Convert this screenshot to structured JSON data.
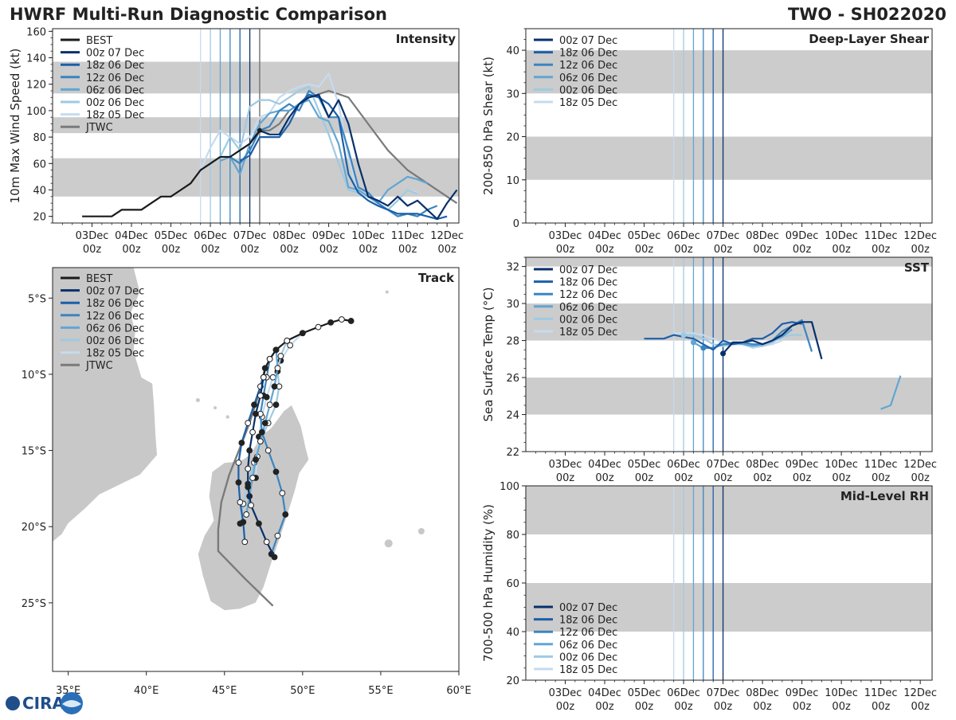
{
  "header": {
    "title": "HWRF Multi-Run Diagnostic Comparison",
    "storm_id": "TWO - SH022020"
  },
  "logo": {
    "text": "CIRA"
  },
  "colors": {
    "best": "#1a1a1a",
    "jtwc": "#7a7a7a",
    "band": "#cccccc",
    "runs": [
      "#08306b",
      "#1c5fa8",
      "#3a85c0",
      "#62a5d3",
      "#9ecae1",
      "#c6dbef"
    ]
  },
  "legend": {
    "best": "BEST",
    "jtwc": "JTWC",
    "runs": [
      "00z 07 Dec",
      "18z 06 Dec",
      "12z 06 Dec",
      "06z 06 Dec",
      "00z 06 Dec",
      "18z 05 Dec"
    ]
  },
  "time_axis": {
    "day_labels": [
      "03Dec",
      "04Dec",
      "05Dec",
      "06Dec",
      "07Dec",
      "08Dec",
      "09Dec",
      "10Dec",
      "11Dec",
      "12Dec"
    ],
    "hour_label": "00z",
    "init_times_days": [
      7.0,
      6.75,
      6.5,
      6.25,
      6.0,
      5.75
    ]
  },
  "chart_data": [
    {
      "type": "line",
      "title": "Intensity",
      "ylabel": "10m Max Wind Speed (kt)",
      "ylim": [
        15,
        162
      ],
      "xlim": [
        2.0,
        12.3
      ],
      "yticks": [
        20,
        40,
        60,
        80,
        100,
        120,
        140,
        160
      ],
      "bands": [
        [
          35,
          64
        ],
        [
          83,
          95
        ],
        [
          113,
          137
        ]
      ],
      "jtwc_time_marker": 7.25,
      "best": {
        "name": "BEST",
        "x": [
          2.75,
          3.0,
          3.25,
          3.5,
          3.75,
          4.0,
          4.25,
          4.5,
          4.75,
          5.0,
          5.25,
          5.5,
          5.75,
          6.0,
          6.25,
          6.5,
          6.75,
          7.0,
          7.25
        ],
        "y": [
          20,
          20,
          20,
          20,
          25,
          25,
          25,
          30,
          35,
          35,
          40,
          45,
          55,
          60,
          65,
          65,
          70,
          75,
          85
        ]
      },
      "jtwc": {
        "name": "JTWC",
        "x": [
          7.25,
          7.5,
          7.75,
          8.0,
          8.5,
          9.0,
          9.5,
          10.0,
          10.5,
          11.0,
          11.5,
          12.0,
          12.25
        ],
        "y": [
          85,
          85,
          90,
          100,
          110,
          115,
          110,
          90,
          70,
          55,
          45,
          35,
          30
        ]
      },
      "series": [
        {
          "name": "00z 07 Dec",
          "x": [
            7.0,
            7.25,
            7.5,
            7.75,
            8.0,
            8.25,
            8.5,
            8.75,
            9.0,
            9.25,
            9.5,
            9.75,
            10.0,
            10.25,
            10.5,
            10.75,
            11.0,
            11.25,
            11.5,
            11.75,
            12.0,
            12.25
          ],
          "y": [
            75,
            85,
            82,
            82,
            95,
            105,
            110,
            112,
            95,
            108,
            90,
            60,
            35,
            32,
            28,
            35,
            28,
            32,
            25,
            18,
            30,
            40
          ]
        },
        {
          "name": "18z 06 Dec",
          "x": [
            6.75,
            7.0,
            7.25,
            7.5,
            7.75,
            8.0,
            8.25,
            8.5,
            8.75,
            9.0,
            9.25,
            9.5,
            9.75,
            10.0,
            10.25,
            10.5,
            10.75,
            11.0,
            11.25,
            11.5,
            11.75,
            12.0
          ],
          "y": [
            62,
            66,
            80,
            80,
            80,
            90,
            105,
            112,
            110,
            105,
            95,
            52,
            38,
            32,
            28,
            25,
            22,
            22,
            22,
            20,
            18,
            20
          ]
        },
        {
          "name": "12z 06 Dec",
          "x": [
            6.5,
            6.75,
            7.0,
            7.25,
            7.5,
            7.75,
            8.0,
            8.25,
            8.5,
            8.75,
            9.0,
            9.25,
            9.5,
            9.75,
            10.0,
            10.25,
            10.5,
            10.75,
            11.0,
            11.25,
            11.5,
            11.75
          ],
          "y": [
            65,
            60,
            70,
            85,
            88,
            100,
            105,
            100,
            115,
            110,
            95,
            95,
            70,
            42,
            38,
            30,
            25,
            20,
            22,
            20,
            25,
            28
          ]
        },
        {
          "name": "06z 06 Dec",
          "x": [
            6.25,
            6.5,
            6.75,
            7.0,
            7.25,
            7.5,
            7.75,
            8.0,
            8.25,
            8.5,
            8.75,
            9.0,
            9.25,
            9.5,
            9.75,
            10.0,
            10.25,
            10.5,
            10.75,
            11.0,
            11.25,
            11.5
          ],
          "y": [
            62,
            65,
            52,
            75,
            90,
            98,
            100,
            100,
            105,
            108,
            95,
            92,
            75,
            42,
            40,
            35,
            30,
            40,
            45,
            50,
            48,
            45
          ]
        },
        {
          "name": "00z 06 Dec",
          "x": [
            6.0,
            6.25,
            6.5,
            6.75,
            7.0,
            7.25,
            7.5,
            7.75,
            8.0,
            8.25,
            8.5,
            8.75,
            9.0,
            9.25,
            9.5,
            9.75,
            10.0,
            10.25,
            10.5,
            10.75,
            11.0,
            11.25
          ],
          "y": [
            60,
            65,
            80,
            70,
            103,
            108,
            108,
            105,
            110,
            115,
            118,
            100,
            82,
            60,
            40,
            38,
            32,
            28,
            25,
            32,
            40,
            37
          ]
        },
        {
          "name": "18z 05 Dec",
          "x": [
            5.75,
            6.0,
            6.25,
            6.5,
            6.75,
            7.0,
            7.25,
            7.5,
            7.75,
            8.0,
            8.25,
            8.5,
            8.75,
            9.0,
            9.25,
            9.5,
            9.75,
            10.0,
            10.25,
            10.5,
            10.75,
            11.0,
            11.25
          ],
          "y": [
            55,
            72,
            85,
            80,
            75,
            80,
            95,
            98,
            110,
            115,
            118,
            120,
            118,
            128,
            105,
            65,
            38,
            35,
            30,
            25,
            32,
            40,
            38
          ]
        }
      ]
    },
    {
      "type": "line",
      "title": "Deep-Layer Shear",
      "ylabel": "200-850 hPa Shear (kt)",
      "ylim": [
        0,
        45
      ],
      "xlim": [
        2.0,
        12.3
      ],
      "yticks": [
        0,
        10,
        20,
        30,
        40
      ],
      "bands": [
        [
          10,
          20
        ],
        [
          30,
          40
        ]
      ],
      "series": []
    },
    {
      "type": "line",
      "title": "SST",
      "ylabel": "Sea Surface Temp (°C)",
      "ylim": [
        22,
        32.5
      ],
      "xlim": [
        2.0,
        12.3
      ],
      "yticks": [
        22,
        24,
        26,
        28,
        30,
        32
      ],
      "bands": [
        [
          24,
          26
        ],
        [
          28,
          30
        ],
        [
          32,
          33
        ]
      ],
      "series": [
        {
          "name": "00z 07 Dec",
          "x": [
            7.0,
            7.25,
            7.5,
            7.75,
            8.0,
            8.25,
            8.5,
            8.75,
            9.0,
            9.25,
            9.5
          ],
          "y": [
            27.3,
            27.9,
            27.9,
            28.0,
            27.8,
            28.0,
            28.3,
            28.8,
            29.0,
            29.0,
            27.0
          ]
        },
        {
          "name": "18z 06 Dec",
          "x": [
            5.0,
            5.25,
            5.5,
            5.75,
            6.0,
            6.25,
            6.5,
            6.75,
            7.0,
            7.25,
            7.5,
            7.75,
            8.0,
            8.25,
            8.5,
            8.75,
            9.0
          ],
          "y": [
            28.1,
            28.1,
            28.1,
            28.3,
            28.2,
            28.1,
            27.8,
            27.5,
            28.0,
            27.8,
            27.9,
            28.1,
            28.1,
            28.4,
            28.9,
            29.0,
            28.9
          ]
        },
        {
          "name": "12z 06 Dec",
          "x": [
            6.5,
            6.75,
            7.0,
            7.25,
            7.5,
            7.75,
            8.0,
            8.25,
            8.5,
            8.75,
            9.0,
            9.25
          ],
          "y": [
            27.6,
            27.6,
            27.8,
            27.8,
            27.9,
            27.8,
            27.8,
            28.0,
            28.5,
            28.8,
            29.1,
            27.4
          ]
        },
        {
          "name": "06z 06 Dec",
          "x": [
            6.25,
            6.5,
            6.75,
            7.0,
            7.25,
            7.5,
            7.75,
            8.0,
            8.25,
            8.5,
            8.75
          ],
          "y": [
            27.9,
            27.6,
            27.6,
            27.8,
            27.9,
            27.8,
            27.7,
            27.8,
            28.0,
            28.2,
            28.6
          ]
        },
        {
          "name": "06z 06 Dec",
          "x": [
            11.0,
            11.25,
            11.5
          ],
          "y": [
            24.3,
            24.5,
            26.1
          ]
        },
        {
          "name": "00z 06 Dec",
          "x": [
            6.0,
            6.25,
            6.5,
            6.75,
            7.0,
            7.25,
            7.5,
            7.75,
            8.0,
            8.25,
            8.5,
            8.75,
            9.0
          ],
          "y": [
            28.3,
            28.3,
            28.1,
            27.8,
            27.7,
            27.8,
            27.8,
            27.7,
            27.7,
            27.9,
            28.2,
            28.3,
            28.3
          ]
        },
        {
          "name": "18z 05 Dec",
          "x": [
            5.75,
            6.0,
            6.25,
            6.5,
            6.75,
            7.0,
            7.25,
            7.5,
            7.75,
            8.0,
            8.25,
            8.5
          ],
          "y": [
            28.4,
            28.4,
            28.4,
            28.3,
            28.1,
            27.9,
            27.8,
            27.8,
            27.6,
            27.7,
            27.8,
            28.0
          ]
        }
      ]
    },
    {
      "type": "line",
      "title": "Mid-Level RH",
      "ylabel": "700-500 hPa Humidity (%)",
      "ylim": [
        20,
        100
      ],
      "xlim": [
        2.0,
        12.3
      ],
      "yticks": [
        20,
        40,
        60,
        80,
        100
      ],
      "bands": [
        [
          40,
          60
        ],
        [
          80,
          100
        ]
      ],
      "series": []
    },
    {
      "type": "line",
      "title": "Track",
      "xlabel_ticks": [
        "35°E",
        "40°E",
        "45°E",
        "50°E",
        "55°E",
        "60°E"
      ],
      "xlim": [
        34.0,
        60.0
      ],
      "ylim": [
        -29.5,
        -3.0
      ],
      "xticks": [
        35,
        40,
        45,
        50,
        55,
        60
      ],
      "yticks": [
        -5,
        -10,
        -15,
        -20,
        -25
      ],
      "ytick_labels": [
        "5°S",
        "10°S",
        "15°S",
        "20°S",
        "25°S"
      ],
      "best": {
        "name": "BEST",
        "lon": [
          53.1,
          52.5,
          51.8,
          51.0,
          50.0,
          49.0,
          48.3,
          47.9,
          47.6,
          47.5
        ],
        "lat": [
          -6.5,
          -6.4,
          -6.6,
          -6.9,
          -7.3,
          -7.8,
          -8.4,
          -9.0,
          -9.6,
          -10.2
        ]
      },
      "jtwc": {
        "name": "JTWC",
        "lon": [
          47.5,
          47.1,
          46.6,
          46.0,
          45.3,
          44.8,
          44.6,
          44.6,
          46.3,
          48.1
        ],
        "lat": [
          -10.2,
          -11.6,
          -13.2,
          -14.8,
          -16.6,
          -18.4,
          -20.2,
          -21.6,
          -23.4,
          -25.2
        ]
      },
      "series": [
        {
          "name": "00z 07 Dec",
          "lon": [
            47.5,
            47.3,
            47.0,
            46.8,
            46.6,
            46.5,
            46.5,
            46.7,
            47.2,
            47.7,
            48.2
          ],
          "lat": [
            -10.2,
            -11.4,
            -12.6,
            -13.8,
            -15.0,
            -16.2,
            -17.4,
            -18.6,
            -19.8,
            -21.0,
            -22.0
          ]
        },
        {
          "name": "18z 06 Dec",
          "lon": [
            47.6,
            47.3,
            46.9,
            46.5,
            46.1,
            45.9,
            45.9,
            46.0,
            46.2,
            46.3
          ],
          "lat": [
            -9.6,
            -10.8,
            -12.0,
            -13.2,
            -14.5,
            -15.8,
            -17.1,
            -18.4,
            -19.7,
            -21.0
          ]
        },
        {
          "name": "12z 06 Dec",
          "lon": [
            47.9,
            47.7,
            47.5,
            47.3,
            47.4,
            47.8,
            48.3,
            48.7,
            48.9,
            48.4,
            48.0
          ],
          "lat": [
            -9.0,
            -10.2,
            -11.4,
            -12.6,
            -13.8,
            -15.0,
            -16.4,
            -17.8,
            -19.2,
            -20.6,
            -21.8
          ]
        },
        {
          "name": "06z 06 Dec",
          "lon": [
            48.3,
            48.4,
            48.2,
            47.9,
            47.6,
            47.3,
            47.0,
            46.8,
            46.6,
            46.4
          ],
          "lat": [
            -8.4,
            -9.6,
            -10.8,
            -12.0,
            -13.2,
            -14.4,
            -15.6,
            -16.8,
            -18.0,
            -19.2
          ]
        },
        {
          "name": "00z 06 Dec",
          "lon": [
            49.0,
            48.6,
            48.4,
            48.5,
            48.3,
            47.8,
            47.3,
            46.9,
            46.5,
            46.2,
            46.0
          ],
          "lat": [
            -7.8,
            -8.8,
            -9.8,
            -10.8,
            -12.0,
            -13.2,
            -14.4,
            -15.8,
            -17.2,
            -18.5,
            -19.8
          ]
        },
        {
          "name": "18z 05 Dec",
          "lon": [
            50.0,
            49.2,
            48.6,
            48.1,
            47.7,
            47.4,
            47.2,
            47.1,
            47.0
          ],
          "lat": [
            -7.3,
            -8.1,
            -9.1,
            -10.2,
            -11.5,
            -12.8,
            -14.1,
            -15.4,
            -16.8
          ]
        }
      ]
    }
  ]
}
